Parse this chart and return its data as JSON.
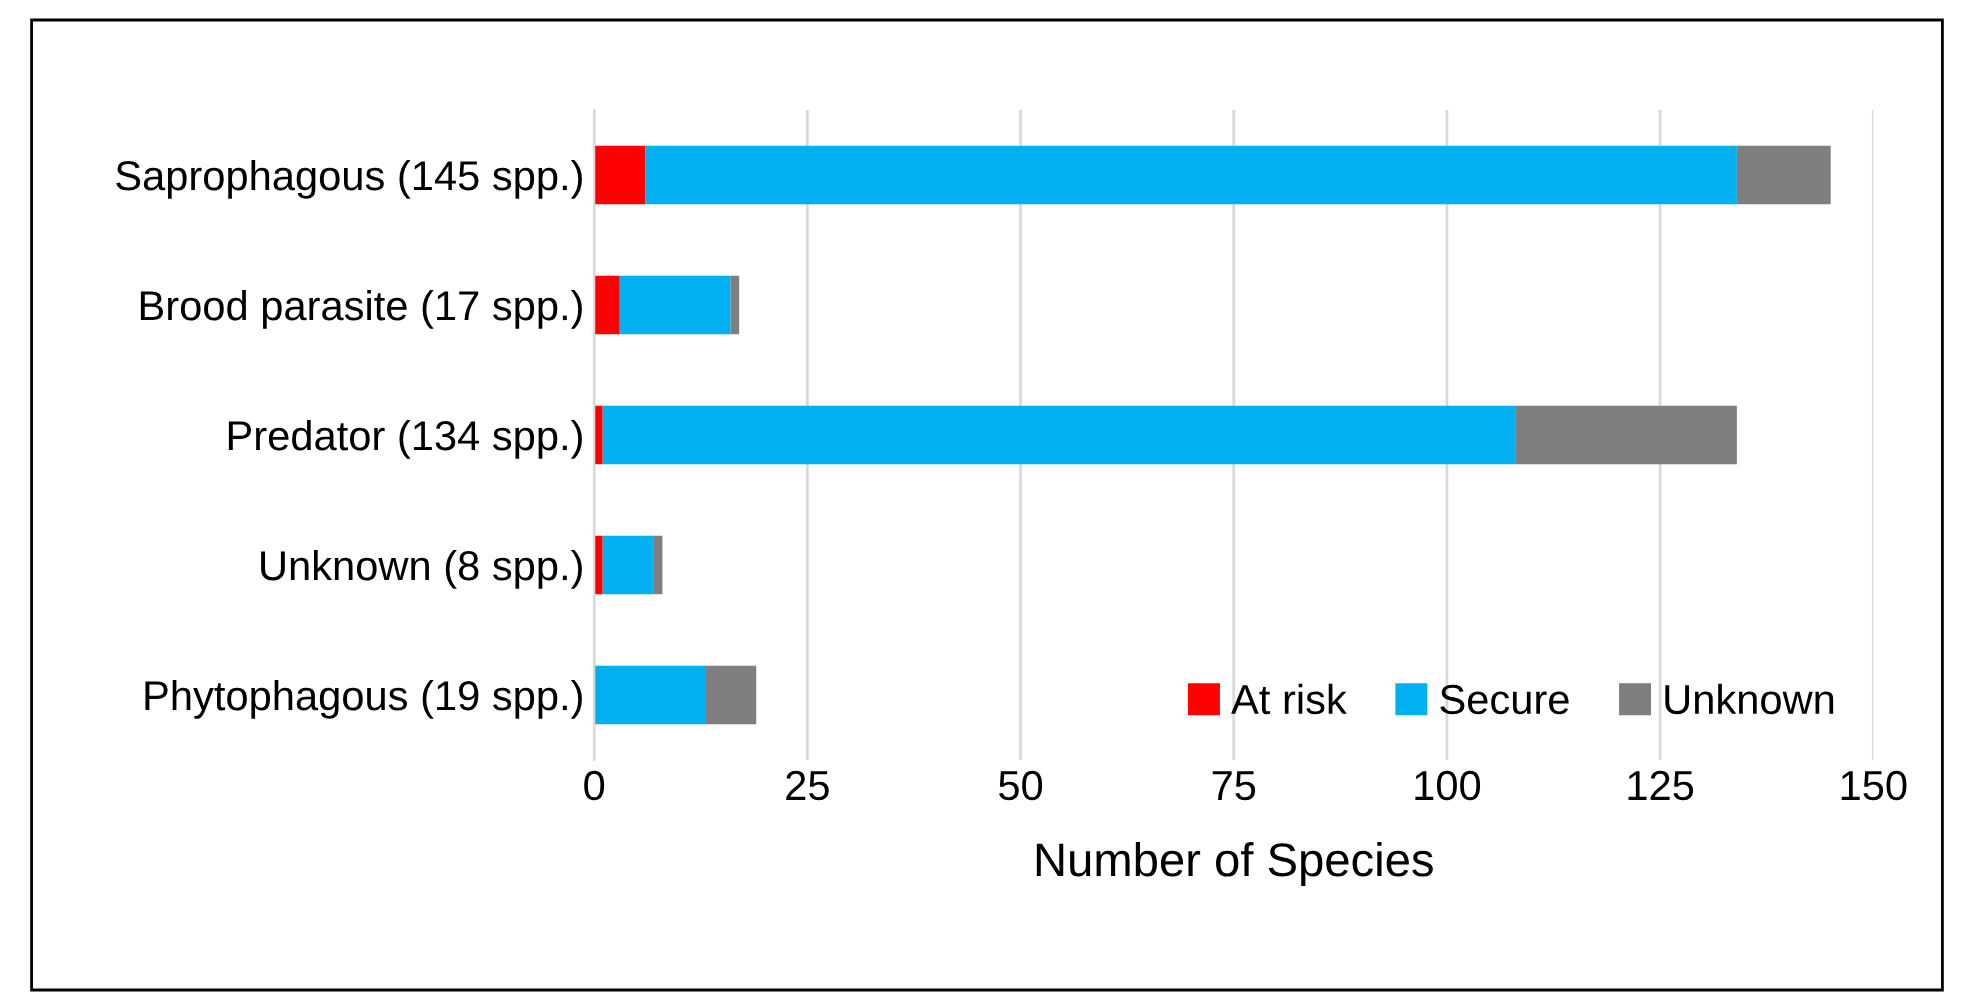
{
  "chart_data": {
    "type": "bar",
    "orientation": "horizontal",
    "stacked": true,
    "categories": [
      "Saprophagous (145 spp.)",
      "Brood parasite (17 spp.)",
      "Predator (134 spp.)",
      "Unknown (8 spp.)",
      "Phytophagous (19 spp.)"
    ],
    "series": [
      {
        "name": "At risk",
        "color": "#ff0000",
        "values": [
          6,
          3,
          1,
          1,
          0
        ]
      },
      {
        "name": "Secure",
        "color": "#00b0f0",
        "values": [
          128,
          13,
          107,
          6,
          13
        ]
      },
      {
        "name": "Unknown",
        "color": "#7f7f7f",
        "values": [
          11,
          1,
          26,
          1,
          6
        ]
      }
    ],
    "xlabel": "Number of Species",
    "xlim": [
      0,
      150
    ],
    "xticks": [
      0,
      25,
      50,
      75,
      100,
      125,
      150
    ],
    "grid": "x",
    "legend": "bottom right"
  }
}
